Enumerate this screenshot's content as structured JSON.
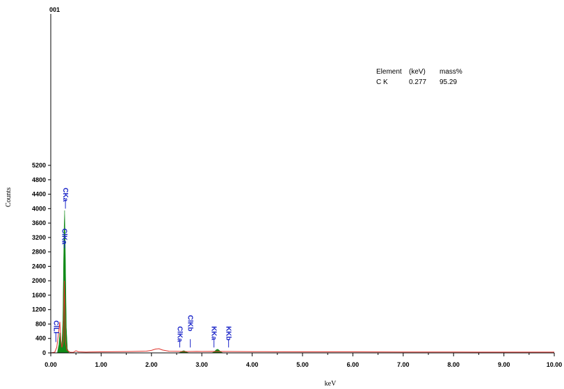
{
  "chart_data": {
    "type": "area",
    "title": "",
    "corner_label": "001",
    "xlabel": "keV",
    "ylabel": "Counts",
    "xlim": [
      0,
      10
    ],
    "ylim": [
      0,
      9400
    ],
    "x_ticks": [
      "0.00",
      "1.00",
      "2.00",
      "3.00",
      "4.00",
      "5.00",
      "6.00",
      "7.00",
      "8.00",
      "9.00",
      "10.00"
    ],
    "y_ticks": [
      0,
      400,
      800,
      1200,
      1600,
      2000,
      2400,
      2800,
      3200,
      3600,
      4000,
      4400,
      4800,
      5200
    ],
    "grid": false,
    "colors": {
      "background_trace": "#e0322a",
      "peak_fill": "#118a18",
      "peak_label": "#1a24c8"
    },
    "spectrum_trace": [
      [
        0.0,
        0
      ],
      [
        0.08,
        20
      ],
      [
        0.12,
        160
      ],
      [
        0.15,
        500
      ],
      [
        0.18,
        860
      ],
      [
        0.2,
        360
      ],
      [
        0.22,
        150
      ],
      [
        0.25,
        320
      ],
      [
        0.27,
        2000
      ],
      [
        0.29,
        320
      ],
      [
        0.32,
        80
      ],
      [
        0.38,
        20
      ],
      [
        0.45,
        15
      ],
      [
        0.5,
        60
      ],
      [
        0.55,
        30
      ],
      [
        0.7,
        22
      ],
      [
        1.0,
        30
      ],
      [
        1.3,
        34
      ],
      [
        1.6,
        38
      ],
      [
        1.9,
        48
      ],
      [
        2.0,
        70
      ],
      [
        2.08,
        105
      ],
      [
        2.15,
        115
      ],
      [
        2.22,
        80
      ],
      [
        2.35,
        45
      ],
      [
        2.55,
        42
      ],
      [
        2.7,
        36
      ],
      [
        2.9,
        40
      ],
      [
        3.0,
        38
      ],
      [
        3.2,
        42
      ],
      [
        3.5,
        38
      ],
      [
        4.0,
        34
      ],
      [
        4.5,
        32
      ],
      [
        5.0,
        30
      ],
      [
        5.5,
        30
      ],
      [
        6.0,
        28
      ],
      [
        6.5,
        26
      ],
      [
        7.0,
        25
      ],
      [
        7.5,
        24
      ],
      [
        8.0,
        23
      ],
      [
        8.5,
        22
      ],
      [
        9.0,
        22
      ],
      [
        9.5,
        22
      ],
      [
        10.0,
        22
      ]
    ],
    "peak_fill": [
      [
        0.13,
        0
      ],
      [
        0.16,
        220
      ],
      [
        0.18,
        560
      ],
      [
        0.2,
        300
      ],
      [
        0.22,
        200
      ],
      [
        0.24,
        900
      ],
      [
        0.255,
        2600
      ],
      [
        0.265,
        3500
      ],
      [
        0.275,
        3950
      ],
      [
        0.285,
        3300
      ],
      [
        0.295,
        2200
      ],
      [
        0.31,
        700
      ],
      [
        0.33,
        120
      ],
      [
        0.36,
        0
      ]
    ],
    "minor_peaks": [
      {
        "center": 2.64,
        "height": 60,
        "width": 0.14
      },
      {
        "center": 3.31,
        "height": 100,
        "width": 0.14
      }
    ],
    "peak_labels": [
      {
        "text": "CKa",
        "x": 0.25,
        "y": 4580,
        "marker_top": 4260,
        "marker_bottom": 4000
      },
      {
        "text": "ClKa",
        "x": 0.23,
        "y": 3450,
        "marker_top": 3120,
        "marker_bottom": 2900
      },
      {
        "text": "ClLl",
        "x": 0.06,
        "y": 900,
        "marker_top": 560,
        "marker_bottom": 300
      },
      {
        "text": "ClKa",
        "x": 2.52,
        "y": 740,
        "marker_top": 380,
        "marker_bottom": 150
      },
      {
        "text": "ClKb",
        "x": 2.73,
        "y": 1050,
        "marker_top": 380,
        "marker_bottom": 150
      },
      {
        "text": "KKa",
        "x": 3.2,
        "y": 740,
        "marker_top": 380,
        "marker_bottom": 150
      },
      {
        "text": "KKb",
        "x": 3.49,
        "y": 740,
        "marker_top": 380,
        "marker_bottom": 150
      }
    ],
    "table": {
      "headers": [
        "Element",
        "(keV)",
        "mass%"
      ],
      "rows": [
        [
          "C K",
          "0.277",
          "95.29"
        ]
      ]
    }
  }
}
